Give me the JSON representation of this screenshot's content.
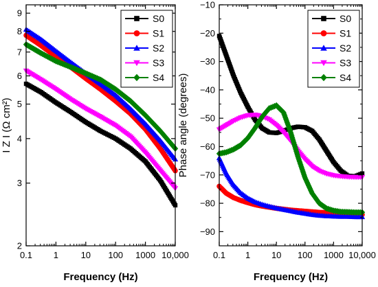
{
  "chart_data": [
    {
      "type": "line",
      "xlabel": "Frequency (Hz)",
      "ylabel": "I Z I (Ω cm²)",
      "x_scale": "log",
      "y_scale": "log",
      "xlim": [
        0.1,
        10000
      ],
      "ylim": [
        2,
        9.5
      ],
      "x_ticks": [
        0.1,
        1,
        10,
        100,
        1000,
        10000
      ],
      "x_tick_labels": [
        "0.1",
        "1",
        "10",
        "100",
        "1000",
        "10,000"
      ],
      "y_ticks": [
        2,
        3,
        4,
        5,
        6,
        7,
        8,
        9
      ],
      "y_tick_labels": [
        "2",
        "3",
        "4",
        "5",
        "6",
        "7",
        "8",
        "9"
      ],
      "legend_position": "top-right",
      "series": [
        {
          "name": "S0",
          "color": "#000000",
          "marker": "square",
          "x": [
            0.1,
            0.316,
            1,
            3.16,
            10,
            31.6,
            100,
            316,
            1000,
            3160,
            10000
          ],
          "y": [
            5.7,
            5.4,
            5.05,
            4.75,
            4.45,
            4.2,
            4.0,
            3.75,
            3.45,
            3.05,
            2.6
          ]
        },
        {
          "name": "S1",
          "color": "#ff0000",
          "marker": "circle",
          "x": [
            0.1,
            0.316,
            1,
            3.16,
            10,
            31.6,
            100,
            316,
            1000,
            3160,
            10000
          ],
          "y": [
            7.8,
            7.3,
            6.8,
            6.35,
            5.9,
            5.5,
            5.1,
            4.7,
            4.25,
            3.75,
            3.25
          ]
        },
        {
          "name": "S2",
          "color": "#0000ff",
          "marker": "triangle-up",
          "x": [
            0.1,
            0.316,
            1,
            3.16,
            10,
            31.6,
            100,
            316,
            1000,
            3160,
            10000
          ],
          "y": [
            8.1,
            7.6,
            7.05,
            6.55,
            6.1,
            5.7,
            5.3,
            4.85,
            4.4,
            3.95,
            3.5
          ]
        },
        {
          "name": "S3",
          "color": "#ff00ff",
          "marker": "triangle-down",
          "x": [
            0.1,
            0.316,
            1,
            3.16,
            10,
            31.6,
            100,
            316,
            1000,
            3160,
            10000
          ],
          "y": [
            6.2,
            5.85,
            5.5,
            5.15,
            4.85,
            4.6,
            4.35,
            4.05,
            3.65,
            3.25,
            2.9
          ]
        },
        {
          "name": "S4",
          "color": "#008000",
          "marker": "diamond",
          "x": [
            0.1,
            0.316,
            1,
            3.16,
            10,
            31.6,
            100,
            316,
            1000,
            3160,
            10000
          ],
          "y": [
            7.35,
            6.95,
            6.6,
            6.35,
            6.1,
            5.85,
            5.5,
            5.1,
            4.65,
            4.2,
            3.75
          ]
        }
      ]
    },
    {
      "type": "line",
      "xlabel": "Frequency (Hz)",
      "ylabel": "Phase angle (degrees)",
      "x_scale": "log",
      "y_scale": "linear",
      "xlim": [
        0.1,
        10000
      ],
      "ylim": [
        -95,
        -10
      ],
      "x_ticks": [
        0.1,
        1,
        10,
        100,
        1000,
        10000
      ],
      "x_tick_labels": [
        "0.1",
        "1",
        "10",
        "100",
        "1000",
        "10,000"
      ],
      "y_ticks": [
        -90,
        -80,
        -70,
        -60,
        -50,
        -40,
        -30,
        -20,
        -10
      ],
      "y_tick_labels": [
        "−90",
        "−80",
        "−70",
        "−60",
        "−50",
        "−40",
        "−30",
        "−20",
        "−10"
      ],
      "legend_position": "top-right",
      "series": [
        {
          "name": "S0",
          "color": "#000000",
          "marker": "square",
          "x": [
            0.1,
            0.178,
            0.316,
            0.562,
            1,
            1.78,
            3.16,
            5.62,
            10,
            17.8,
            31.6,
            56.2,
            100,
            178,
            316,
            562,
            1000,
            1780,
            3160,
            5620,
            10000
          ],
          "y": [
            -21,
            -28,
            -35,
            -41,
            -46,
            -50.5,
            -53.5,
            -55,
            -55.2,
            -54.5,
            -53.5,
            -53,
            -53.2,
            -54.5,
            -57.5,
            -61.5,
            -65.5,
            -68.5,
            -70.3,
            -70.5,
            -69.5
          ]
        },
        {
          "name": "S1",
          "color": "#ff0000",
          "marker": "circle",
          "x": [
            0.1,
            0.178,
            0.316,
            0.562,
            1,
            1.78,
            3.16,
            5.62,
            10,
            17.8,
            31.6,
            56.2,
            100,
            178,
            316,
            562,
            1000,
            1780,
            3160,
            5620,
            10000
          ],
          "y": [
            -74,
            -76.5,
            -78,
            -79,
            -79.8,
            -80.5,
            -81,
            -81.4,
            -81.8,
            -82.1,
            -82.4,
            -82.6,
            -82.8,
            -83,
            -83.2,
            -83.3,
            -83.5,
            -83.6,
            -83.7,
            -83.8,
            -84
          ]
        },
        {
          "name": "S2",
          "color": "#0000ff",
          "marker": "triangle-up",
          "x": [
            0.1,
            0.178,
            0.316,
            0.562,
            1,
            1.78,
            3.16,
            5.62,
            10,
            17.8,
            31.6,
            56.2,
            100,
            178,
            316,
            562,
            1000,
            1780,
            3160,
            5620,
            10000
          ],
          "y": [
            -64,
            -69.5,
            -73.5,
            -76.3,
            -78.2,
            -79.5,
            -80.4,
            -81.1,
            -81.7,
            -82.2,
            -82.7,
            -83.2,
            -83.6,
            -84,
            -84.3,
            -84.5,
            -84.6,
            -84.7,
            -84.7,
            -84.8,
            -84.8
          ]
        },
        {
          "name": "S3",
          "color": "#ff00ff",
          "marker": "triangle-down",
          "x": [
            0.1,
            0.178,
            0.316,
            0.562,
            1,
            1.78,
            3.16,
            5.62,
            10,
            17.8,
            31.6,
            56.2,
            100,
            178,
            316,
            562,
            1000,
            1780,
            3160,
            5620,
            10000
          ],
          "y": [
            -54,
            -52.5,
            -51,
            -49.8,
            -49,
            -48.8,
            -49.3,
            -50.5,
            -52.5,
            -55,
            -58,
            -61.5,
            -64.5,
            -67,
            -68.6,
            -69.6,
            -70.2,
            -70.5,
            -70.7,
            -70.8,
            -70.8
          ]
        },
        {
          "name": "S4",
          "color": "#008000",
          "marker": "diamond",
          "x": [
            0.1,
            0.178,
            0.316,
            0.562,
            1,
            1.78,
            3.16,
            5.62,
            10,
            17.8,
            31.6,
            56.2,
            100,
            178,
            316,
            562,
            1000,
            1780,
            3160,
            5620,
            10000
          ],
          "y": [
            -62.5,
            -62,
            -61,
            -59.5,
            -57,
            -53.5,
            -49.5,
            -46.5,
            -45.5,
            -48,
            -55,
            -63.5,
            -71,
            -76.5,
            -80,
            -81.8,
            -82.6,
            -83,
            -83.1,
            -83.2,
            -83.2
          ]
        }
      ]
    }
  ]
}
